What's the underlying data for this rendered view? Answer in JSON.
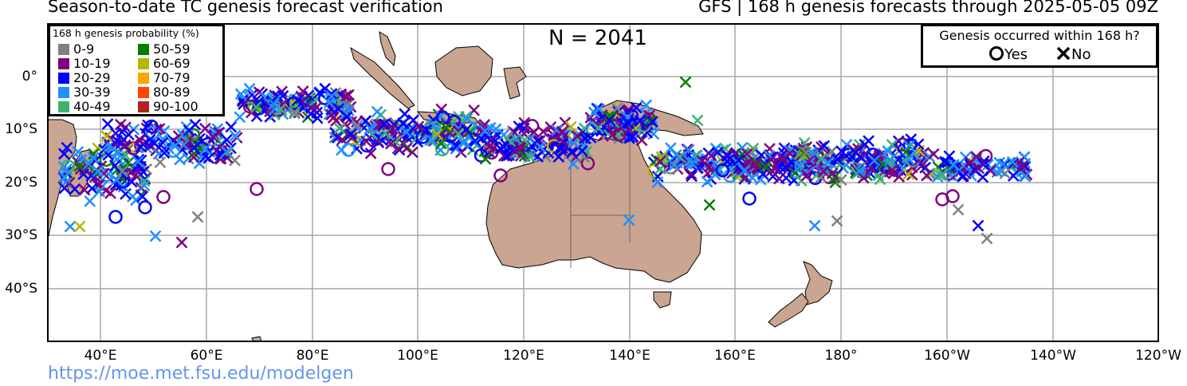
{
  "header": {
    "title_left": "Season-to-date TC genesis forecast verification",
    "title_right": "GFS | 168 h genesis forecasts through 2025-05-05 09Z"
  },
  "map": {
    "count_label": "N = 2041",
    "lat_labels": [
      "0°",
      "10°S",
      "20°S",
      "30°S",
      "40°S"
    ],
    "lon_labels": [
      "40°E",
      "60°E",
      "80°E",
      "100°E",
      "120°E",
      "140°E",
      "160°E",
      "180°",
      "160°W",
      "140°W",
      "120°W"
    ],
    "land_color": "#c9a592",
    "ocean_color": "#ffffff",
    "grid_color": "#a9a9a9"
  },
  "legend": {
    "title": "168 h genesis probability (%)",
    "bins": [
      {
        "label": "0-9",
        "color": "#808080"
      },
      {
        "label": "10-19",
        "color": "#800080"
      },
      {
        "label": "20-29",
        "color": "#0000ff"
      },
      {
        "label": "30-39",
        "color": "#1e90ff"
      },
      {
        "label": "40-49",
        "color": "#3cb371"
      },
      {
        "label": "50-59",
        "color": "#008000"
      },
      {
        "label": "60-69",
        "color": "#b5b800"
      },
      {
        "label": "70-79",
        "color": "#ffa500"
      },
      {
        "label": "80-89",
        "color": "#ff4500"
      },
      {
        "label": "90-100",
        "color": "#b22222"
      }
    ]
  },
  "outcome_legend": {
    "title": "Genesis occurred within 168 h?",
    "yes_label": "Yes",
    "no_label": "No"
  },
  "footer": {
    "url": "https://moe.met.fsu.edu/modelgen"
  }
}
